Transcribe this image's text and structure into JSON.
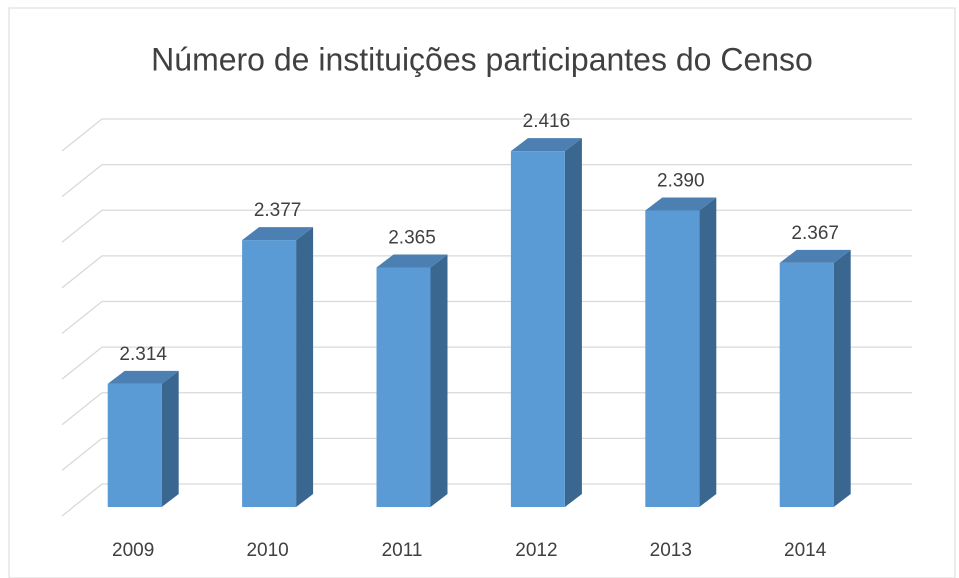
{
  "chart_data": {
    "type": "bar3d",
    "title": "Número de instituições participantes do Censo",
    "categories": [
      "2009",
      "2010",
      "2011",
      "2012",
      "2013",
      "2014"
    ],
    "values": [
      2314,
      2377,
      2365,
      2416,
      2390,
      2367
    ],
    "value_labels": [
      "2.314",
      "2.377",
      "2.365",
      "2.416",
      "2.390",
      "2.367"
    ],
    "color": "#5b9bd5",
    "ylim": [
      2260,
      2420
    ],
    "yticks": [
      2260,
      2280,
      2300,
      2320,
      2340,
      2360,
      2380,
      2400,
      2420
    ],
    "grid": true
  }
}
